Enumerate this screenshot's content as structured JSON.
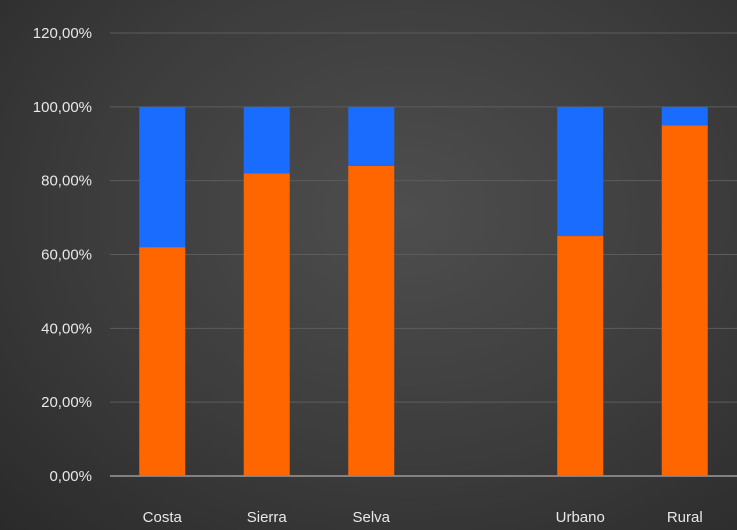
{
  "chart_data": {
    "type": "bar",
    "stacked": true,
    "categories": [
      "Costa",
      "Sierra",
      "Selva",
      "",
      "Urbano",
      "Rural"
    ],
    "series": [
      {
        "values": [
          62,
          82,
          84,
          null,
          65,
          95
        ]
      },
      {
        "values": [
          38,
          18,
          16,
          null,
          35,
          5
        ]
      }
    ],
    "colors": [
      "#ff6600",
      "#1a6cff"
    ],
    "ylim": [
      0,
      120
    ],
    "yticks": [
      "0,00%",
      "20,00%",
      "40,00%",
      "60,00%",
      "80,00%",
      "100,00%",
      "120,00%"
    ],
    "grid": true,
    "legend": "none",
    "title": "",
    "xlabel": "",
    "ylabel": ""
  }
}
